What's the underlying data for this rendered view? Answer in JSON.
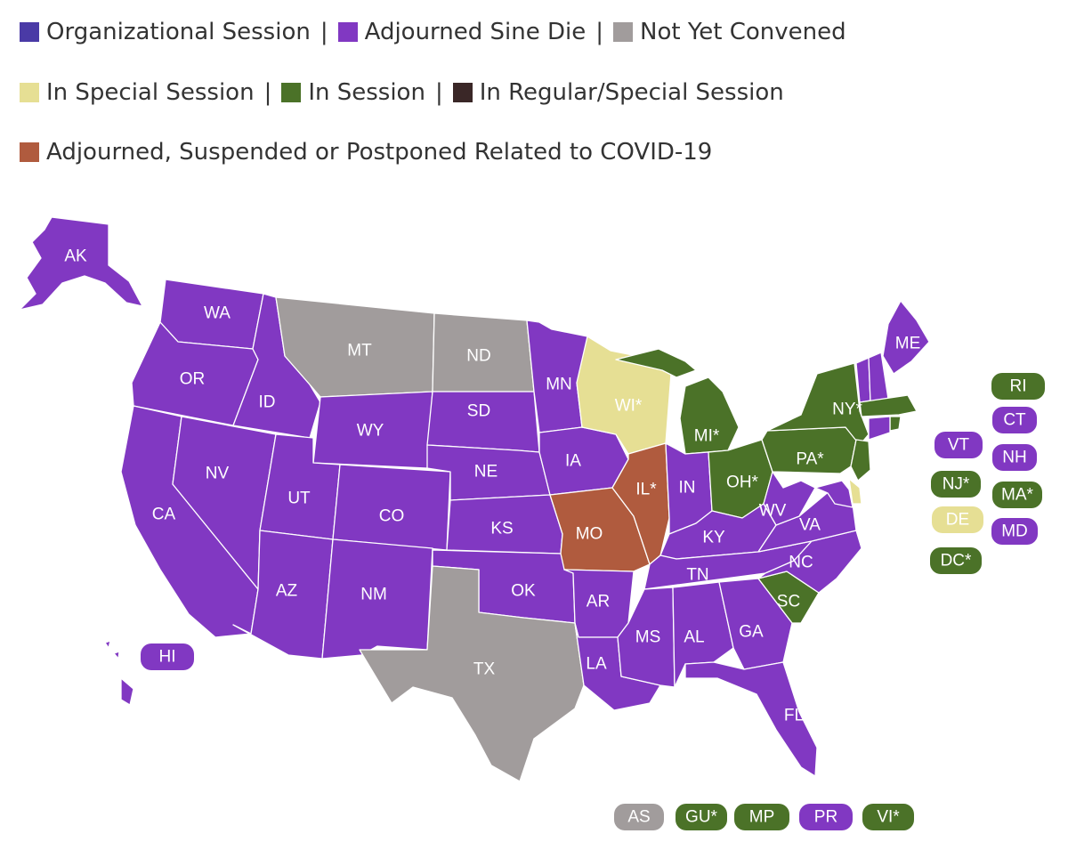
{
  "legend": {
    "colors": {
      "organizational": "#4a3aa6",
      "adjourned_sine_die": "#8138c2",
      "not_yet_convened": "#a19c9c",
      "special_session": "#e6df94",
      "in_session": "#4b7228",
      "regular_special": "#3a2727",
      "covid": "#b05b3e"
    },
    "rows": [
      [
        {
          "key": "organizational",
          "label": "Organizational Session"
        },
        {
          "key": "adjourned_sine_die",
          "label": "Adjourned Sine Die"
        },
        {
          "key": "not_yet_convened",
          "label": "Not Yet Convened"
        }
      ],
      [
        {
          "key": "special_session",
          "label": "In Special Session"
        },
        {
          "key": "in_session",
          "label": "In Session"
        },
        {
          "key": "regular_special",
          "label": "In Regular/Special Session"
        }
      ],
      [
        {
          "key": "covid",
          "label": "Adjourned, Suspended or Postponed Related to COVID-19"
        }
      ]
    ],
    "separator": "|"
  },
  "states": [
    {
      "code": "AK",
      "label": "AK",
      "status": "adjourned_sine_die"
    },
    {
      "code": "HI",
      "label": "HI",
      "status": "adjourned_sine_die"
    },
    {
      "code": "WA",
      "label": "WA",
      "status": "adjourned_sine_die"
    },
    {
      "code": "OR",
      "label": "OR",
      "status": "adjourned_sine_die"
    },
    {
      "code": "CA",
      "label": "CA",
      "status": "adjourned_sine_die"
    },
    {
      "code": "ID",
      "label": "ID",
      "status": "adjourned_sine_die"
    },
    {
      "code": "NV",
      "label": "NV",
      "status": "adjourned_sine_die"
    },
    {
      "code": "MT",
      "label": "MT",
      "status": "not_yet_convened"
    },
    {
      "code": "WY",
      "label": "WY",
      "status": "adjourned_sine_die"
    },
    {
      "code": "UT",
      "label": "UT",
      "status": "adjourned_sine_die"
    },
    {
      "code": "AZ",
      "label": "AZ",
      "status": "adjourned_sine_die"
    },
    {
      "code": "CO",
      "label": "CO",
      "status": "adjourned_sine_die"
    },
    {
      "code": "NM",
      "label": "NM",
      "status": "adjourned_sine_die"
    },
    {
      "code": "ND",
      "label": "ND",
      "status": "not_yet_convened"
    },
    {
      "code": "SD",
      "label": "SD",
      "status": "adjourned_sine_die"
    },
    {
      "code": "NE",
      "label": "NE",
      "status": "adjourned_sine_die"
    },
    {
      "code": "KS",
      "label": "KS",
      "status": "adjourned_sine_die"
    },
    {
      "code": "OK",
      "label": "OK",
      "status": "adjourned_sine_die"
    },
    {
      "code": "TX",
      "label": "TX",
      "status": "not_yet_convened"
    },
    {
      "code": "MN",
      "label": "MN",
      "status": "adjourned_sine_die"
    },
    {
      "code": "IA",
      "label": "IA",
      "status": "adjourned_sine_die"
    },
    {
      "code": "MO",
      "label": "MO",
      "status": "covid"
    },
    {
      "code": "AR",
      "label": "AR",
      "status": "adjourned_sine_die"
    },
    {
      "code": "LA",
      "label": "LA",
      "status": "adjourned_sine_die"
    },
    {
      "code": "WI",
      "label": "WI*",
      "status": "special_session"
    },
    {
      "code": "IL",
      "label": "IL*",
      "status": "covid"
    },
    {
      "code": "MI",
      "label": "MI*",
      "status": "in_session"
    },
    {
      "code": "IN",
      "label": "IN",
      "status": "adjourned_sine_die"
    },
    {
      "code": "OH",
      "label": "OH*",
      "status": "in_session"
    },
    {
      "code": "KY",
      "label": "KY",
      "status": "adjourned_sine_die"
    },
    {
      "code": "TN",
      "label": "TN",
      "status": "adjourned_sine_die"
    },
    {
      "code": "MS",
      "label": "MS",
      "status": "adjourned_sine_die"
    },
    {
      "code": "AL",
      "label": "AL",
      "status": "adjourned_sine_die"
    },
    {
      "code": "GA",
      "label": "GA",
      "status": "adjourned_sine_die"
    },
    {
      "code": "FL",
      "label": "FL",
      "status": "adjourned_sine_die"
    },
    {
      "code": "SC",
      "label": "SC",
      "status": "in_session"
    },
    {
      "code": "NC",
      "label": "NC",
      "status": "adjourned_sine_die"
    },
    {
      "code": "VA",
      "label": "VA",
      "status": "adjourned_sine_die"
    },
    {
      "code": "WV",
      "label": "WV",
      "status": "adjourned_sine_die"
    },
    {
      "code": "PA",
      "label": "PA*",
      "status": "in_session"
    },
    {
      "code": "NY",
      "label": "NY*",
      "status": "in_session"
    },
    {
      "code": "ME",
      "label": "ME",
      "status": "adjourned_sine_die"
    }
  ],
  "small_states": [
    {
      "code": "RI",
      "label": "RI",
      "status": "in_session"
    },
    {
      "code": "CT",
      "label": "CT",
      "status": "adjourned_sine_die"
    },
    {
      "code": "VT",
      "label": "VT",
      "status": "adjourned_sine_die"
    },
    {
      "code": "NH",
      "label": "NH",
      "status": "adjourned_sine_die"
    },
    {
      "code": "NJ",
      "label": "NJ*",
      "status": "in_session"
    },
    {
      "code": "MA",
      "label": "MA*",
      "status": "in_session"
    },
    {
      "code": "DE",
      "label": "DE",
      "status": "special_session"
    },
    {
      "code": "MD",
      "label": "MD",
      "status": "adjourned_sine_die"
    },
    {
      "code": "DC",
      "label": "DC*",
      "status": "in_session"
    }
  ],
  "territories": [
    {
      "code": "AS",
      "label": "AS",
      "status": "not_yet_convened"
    },
    {
      "code": "GU",
      "label": "GU*",
      "status": "in_session"
    },
    {
      "code": "MP",
      "label": "MP",
      "status": "in_session"
    },
    {
      "code": "PR",
      "label": "PR",
      "status": "adjourned_sine_die"
    },
    {
      "code": "VI",
      "label": "VI*",
      "status": "in_session"
    }
  ]
}
